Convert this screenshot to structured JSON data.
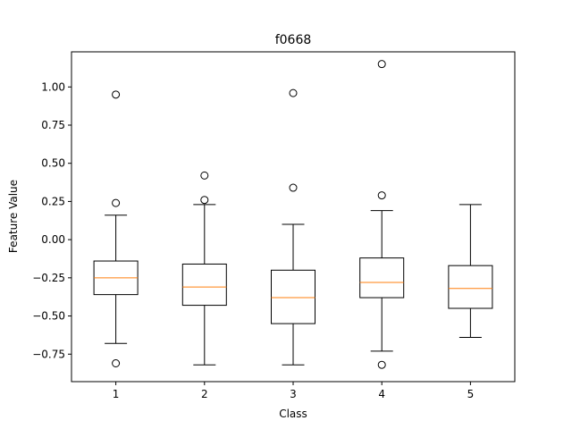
{
  "chart_data": {
    "type": "box",
    "title": "f0668",
    "xlabel": "Class",
    "ylabel": "Feature Value",
    "categories": [
      "1",
      "2",
      "3",
      "4",
      "5"
    ],
    "ylim": [
      -0.93,
      1.23
    ],
    "yticks": [
      -0.75,
      -0.5,
      -0.25,
      0.0,
      0.25,
      0.5,
      0.75,
      1.0
    ],
    "ytick_labels": [
      "−0.75",
      "−0.50",
      "−0.25",
      "0.00",
      "0.25",
      "0.50",
      "0.75",
      "1.00"
    ],
    "grid": false,
    "colors": {
      "box": "#000000",
      "median": "#ff7f0e",
      "flier": "#000000"
    },
    "boxes": [
      {
        "label": "1",
        "whisker_low": -0.68,
        "q1": -0.36,
        "median": -0.25,
        "q3": -0.14,
        "whisker_high": 0.16,
        "outliers": [
          0.95,
          0.24,
          -0.81
        ]
      },
      {
        "label": "2",
        "whisker_low": -0.82,
        "q1": -0.43,
        "median": -0.31,
        "q3": -0.16,
        "whisker_high": 0.23,
        "outliers": [
          0.42,
          0.26
        ]
      },
      {
        "label": "3",
        "whisker_low": -0.82,
        "q1": -0.55,
        "median": -0.38,
        "q3": -0.2,
        "whisker_high": 0.1,
        "outliers": [
          0.96,
          0.34
        ]
      },
      {
        "label": "4",
        "whisker_low": -0.73,
        "q1": -0.38,
        "median": -0.28,
        "q3": -0.12,
        "whisker_high": 0.19,
        "outliers": [
          1.15,
          0.29,
          -0.82
        ]
      },
      {
        "label": "5",
        "whisker_low": -0.64,
        "q1": -0.45,
        "median": -0.32,
        "q3": -0.17,
        "whisker_high": 0.23,
        "outliers": []
      }
    ]
  }
}
